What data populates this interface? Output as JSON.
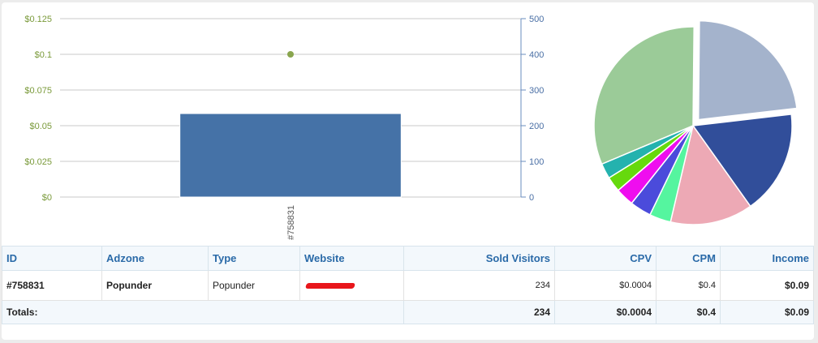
{
  "chart_data": [
    {
      "type": "bar",
      "categories": [
        "#758831"
      ],
      "series": [
        {
          "values": [
            234
          ],
          "axis": "right",
          "mark": "bar",
          "color": "#4572a7"
        },
        {
          "values": [
            0.1
          ],
          "axis": "left",
          "mark": "point",
          "color": "#89a54e"
        }
      ],
      "left_axis": {
        "ticks": [
          "$0",
          "$0.025",
          "$0.05",
          "$0.075",
          "$0.1",
          "$0.125"
        ],
        "ylim": [
          0,
          0.125
        ],
        "color": "#7a9a3a"
      },
      "right_axis": {
        "ticks": [
          "0",
          "100",
          "200",
          "300",
          "400",
          "500"
        ],
        "ylim": [
          0,
          500
        ],
        "color": "#4a6fa5"
      },
      "grid": true
    },
    {
      "type": "pie",
      "values": [
        23,
        17,
        13.5,
        3.5,
        3.5,
        3,
        2.5,
        2.5,
        31.5
      ],
      "colors": [
        "#a4b3cc",
        "#314e9a",
        "#eda9b5",
        "#55f59f",
        "#4b4bdb",
        "#ef0def",
        "#66d90d",
        "#24b2ae",
        "#9bcb98"
      ],
      "exploded": [
        0
      ]
    }
  ],
  "table": {
    "headers": [
      "ID",
      "Adzone",
      "Type",
      "Website",
      "Sold Visitors",
      "CPV",
      "CPM",
      "Income"
    ],
    "rows": [
      {
        "id": "#758831",
        "adzone": "Popunder",
        "type": "Popunder",
        "sold_visitors": "234",
        "cpv": "$0.0004",
        "cpm": "$0.4",
        "income": "$0.09"
      }
    ],
    "totals": {
      "label": "Totals:",
      "sold_visitors": "234",
      "cpv": "$0.0004",
      "cpm": "$0.4",
      "income": "$0.09"
    }
  }
}
